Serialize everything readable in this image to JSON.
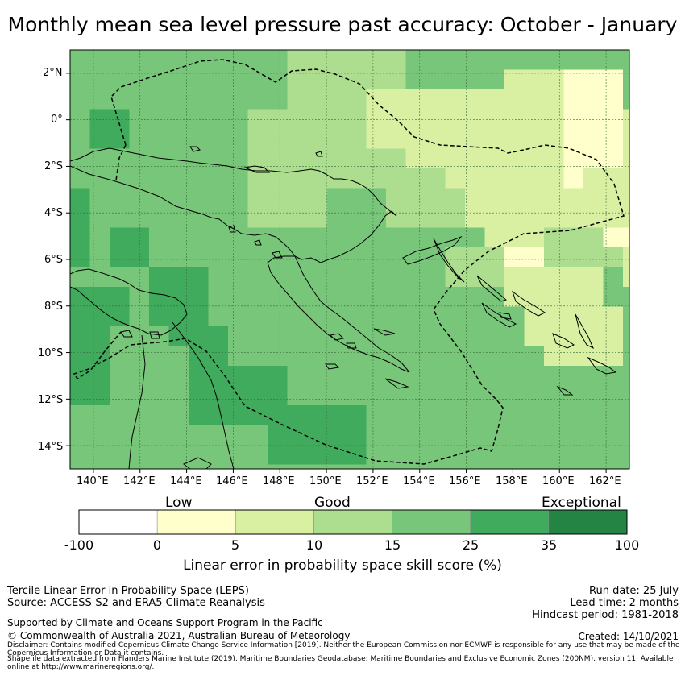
{
  "title": "Monthly mean sea level pressure past accuracy: October - January",
  "map": {
    "lat_labels": [
      "2°N",
      "0°",
      "2°S",
      "4°S",
      "6°S",
      "8°S",
      "10°S",
      "12°S",
      "14°S"
    ],
    "lon_labels": [
      "140°E",
      "142°E",
      "144°E",
      "146°E",
      "148°E",
      "150°E",
      "152°E",
      "154°E",
      "156°E",
      "158°E",
      "160°E",
      "162°E"
    ],
    "extent": {
      "lon": [
        139,
        163
      ],
      "lat": [
        -15,
        3
      ]
    }
  },
  "colorbar": {
    "category_labels": [
      "Low",
      "Good",
      "Exceptional"
    ],
    "ticks": [
      "-100",
      "0",
      "5",
      "10",
      "15",
      "25",
      "35",
      "100"
    ],
    "colors": [
      "#ffffff",
      "#ffffcc",
      "#d9f0a3",
      "#addd8e",
      "#78c679",
      "#41ab5d",
      "#238443"
    ],
    "title": "Linear error in probability space skill score (%)"
  },
  "footer": {
    "method": "Tercile Linear Error in Probability Space (LEPS)",
    "source": "Source: ACCESS-S2 and ERA5 Climate Reanalysis",
    "run_date": "Run date: 25 July",
    "lead_time": "Lead time: 2 months",
    "hindcast": "Hindcast period: 1981-2018",
    "support": "Supported by Climate and Oceans Support Program in the Pacific",
    "copyright": "© Commonwealth of Australia 2021, Australian Bureau of Meteorology",
    "created": "Created: 14/10/2021",
    "disclaimer": "Disclaimer: Contains modified Copernicus Climate Change Service Information [2019]. Neither the European Commission nor ECMWF is responsible for any use that may be made of the Copernicus Information or Data it contains.",
    "shapefile": "Shapefile data extracted from Flanders Marine Institute (2019), Maritime Boundaries Geodatabase: Maritime Boundaries and Exclusive Economic Zones (200NM), version 11. Available online at http://www.marineregions.org/."
  }
}
